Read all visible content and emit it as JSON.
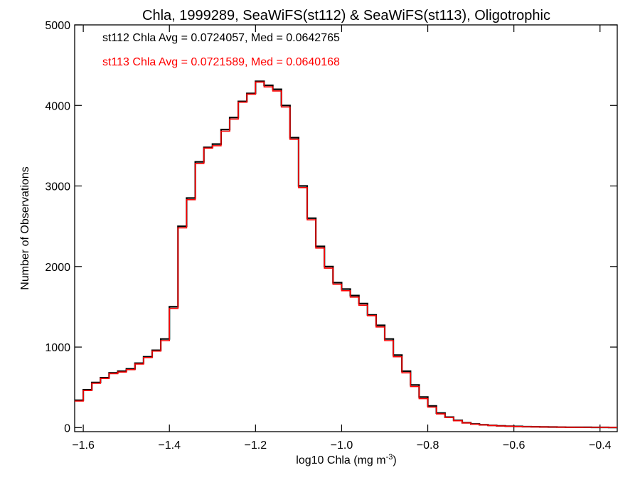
{
  "chart_data": {
    "type": "line",
    "title": "Chla, 1999289, SeaWiFS(st112) & SeaWiFS(st113), Oligotrophic",
    "xlabel": "log10 Chla (mg m",
    "xlabel_exponent": "-3",
    "xlabel_close": ")",
    "ylabel": "Number of Observations",
    "xlim": [
      -1.62,
      -0.36
    ],
    "ylim": [
      -50,
      5000
    ],
    "x_ticks": [
      -1.6,
      -1.4,
      -1.2,
      -1.0,
      -0.8,
      -0.6,
      -0.4
    ],
    "x_tick_labels": [
      "−1.6",
      "−1.4",
      "−1.2",
      "−1.0",
      "−0.8",
      "−0.6",
      "−0.4"
    ],
    "y_ticks": [
      0,
      1000,
      2000,
      3000,
      4000,
      5000
    ],
    "y_tick_labels": [
      "0",
      "1000",
      "2000",
      "3000",
      "4000",
      "5000"
    ],
    "grid": false,
    "line_style": "step",
    "annotations": [
      {
        "text": "st112 Chla Avg = 0.0724057, Med = 0.0642765",
        "color": "#000000"
      },
      {
        "text": "st113 Chla Avg = 0.0721589, Med = 0.0640168",
        "color": "#ff0000"
      }
    ],
    "x": [
      -1.62,
      -1.6,
      -1.58,
      -1.56,
      -1.54,
      -1.52,
      -1.5,
      -1.48,
      -1.46,
      -1.44,
      -1.42,
      -1.4,
      -1.38,
      -1.36,
      -1.34,
      -1.32,
      -1.3,
      -1.28,
      -1.26,
      -1.24,
      -1.22,
      -1.2,
      -1.18,
      -1.16,
      -1.14,
      -1.12,
      -1.1,
      -1.08,
      -1.06,
      -1.04,
      -1.02,
      -1.0,
      -0.98,
      -0.96,
      -0.94,
      -0.92,
      -0.9,
      -0.88,
      -0.86,
      -0.84,
      -0.82,
      -0.8,
      -0.78,
      -0.76,
      -0.74,
      -0.72,
      -0.7,
      -0.68,
      -0.66,
      -0.64,
      -0.62,
      -0.6,
      -0.58,
      -0.56,
      -0.54,
      -0.52,
      -0.5,
      -0.48,
      -0.46,
      -0.44,
      -0.42,
      -0.4,
      -0.38,
      -0.36
    ],
    "series": [
      {
        "color": "#000000",
        "values": [
          340,
          470,
          560,
          620,
          680,
          700,
          730,
          800,
          880,
          960,
          1100,
          1500,
          2500,
          2850,
          3300,
          3480,
          3520,
          3700,
          3850,
          4050,
          4150,
          4300,
          4250,
          4200,
          4000,
          3600,
          3000,
          2600,
          2250,
          2000,
          1800,
          1720,
          1640,
          1540,
          1400,
          1270,
          1100,
          900,
          700,
          530,
          380,
          270,
          180,
          130,
          90,
          60,
          45,
          35,
          28,
          22,
          18,
          15,
          12,
          10,
          8,
          7,
          6,
          5,
          4,
          4,
          3,
          3,
          2,
          2
        ]
      },
      {
        "color": "#ff0000",
        "values": [
          330,
          460,
          550,
          610,
          670,
          690,
          720,
          790,
          870,
          950,
          1080,
          1480,
          2480,
          2830,
          3280,
          3470,
          3500,
          3680,
          3830,
          4040,
          4140,
          4290,
          4230,
          4180,
          3980,
          3580,
          2980,
          2580,
          2230,
          1980,
          1780,
          1700,
          1620,
          1520,
          1390,
          1250,
          1080,
          880,
          680,
          510,
          360,
          255,
          170,
          125,
          85,
          58,
          43,
          33,
          26,
          21,
          17,
          14,
          11,
          9,
          8,
          7,
          6,
          5,
          4,
          3,
          3,
          2,
          2,
          2
        ]
      }
    ]
  }
}
